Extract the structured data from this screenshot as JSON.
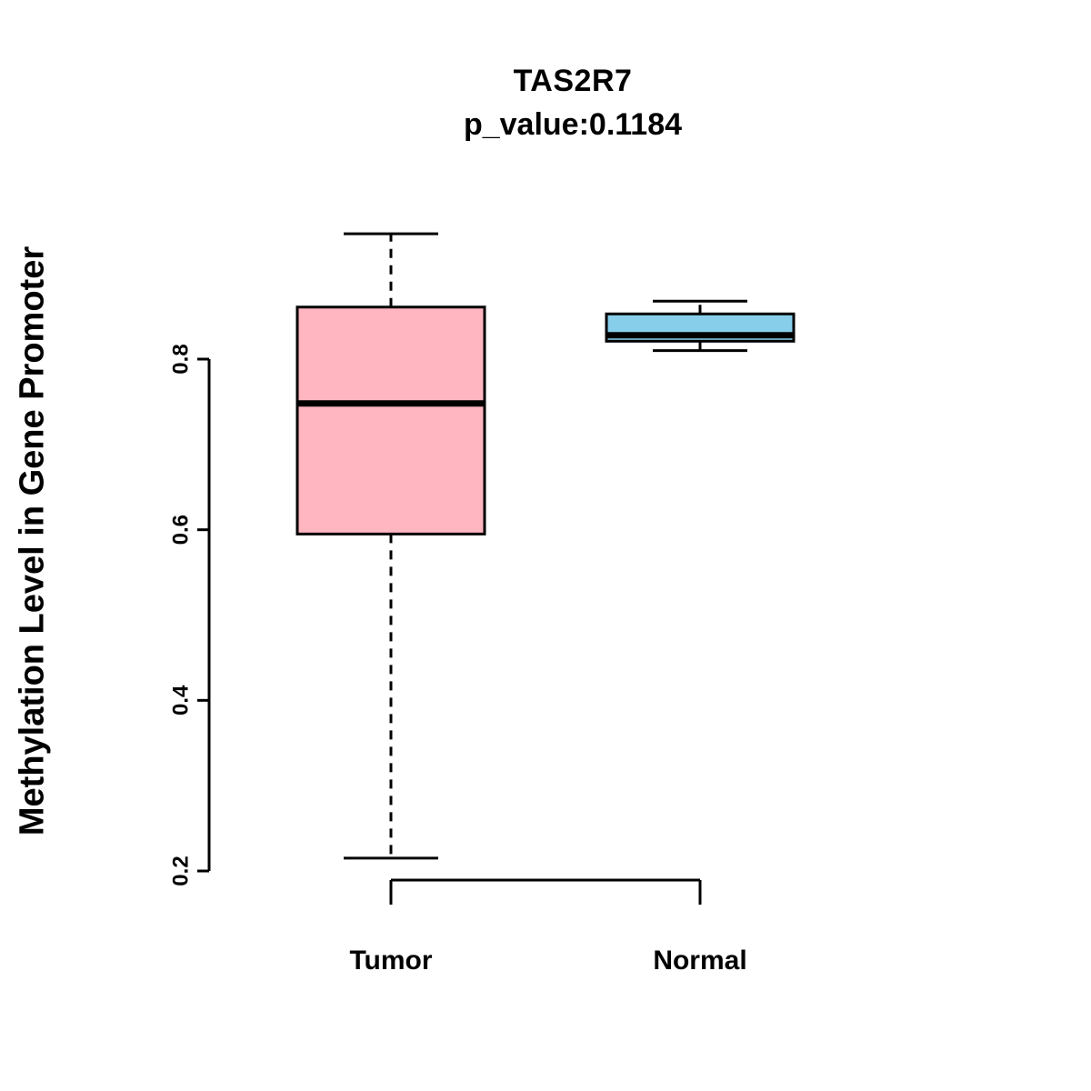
{
  "chart_data": {
    "type": "boxplot",
    "title": "TAS2R7",
    "subtitle": "p_value:0.1184",
    "ylabel": "Methylation Level in Gene Promoter",
    "xlabel": "",
    "categories": [
      "Tumor",
      "Normal"
    ],
    "yticks": [
      0.2,
      0.4,
      0.6,
      0.8
    ],
    "ylim": [
      0.15,
      0.97
    ],
    "grid": false,
    "legend": "none",
    "background_color": "#ffffff",
    "axis_color": "#000000",
    "series": [
      {
        "name": "Tumor",
        "color": "#FFB6C1",
        "lower_whisker": 0.215,
        "q1": 0.595,
        "median": 0.748,
        "q3": 0.861,
        "upper_whisker": 0.947
      },
      {
        "name": "Normal",
        "color": "#87CEEB",
        "lower_whisker": 0.81,
        "q1": 0.821,
        "median": 0.828,
        "q3": 0.853,
        "upper_whisker": 0.868
      }
    ]
  }
}
